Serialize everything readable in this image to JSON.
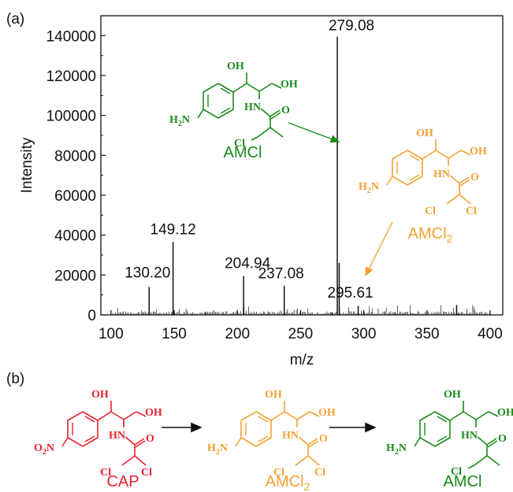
{
  "panel_labels": {
    "a": "(a)",
    "b": "(b)"
  },
  "colors": {
    "green": "#1a8a1a",
    "orange": "#f5a033",
    "red": "#e8202f",
    "axis": "#111111"
  },
  "chart_data": {
    "type": "bar",
    "title": "",
    "xlabel": "m/z",
    "ylabel": "Intensity",
    "xlim": [
      92,
      410
    ],
    "ylim": [
      0,
      150000
    ],
    "x_ticks": [
      "100",
      "150",
      "200",
      "250",
      "300",
      "350",
      "400"
    ],
    "y_ticks": [
      "0",
      "20000",
      "40000",
      "60000",
      "80000",
      "100000",
      "120000",
      "140000"
    ],
    "grid": false,
    "peaks": [
      {
        "x": 130.2,
        "y": 14000,
        "label": "130.20"
      },
      {
        "x": 149.12,
        "y": 36500,
        "label": "149.12"
      },
      {
        "x": 204.94,
        "y": 19500,
        "label": "204.94"
      },
      {
        "x": 237.08,
        "y": 14500,
        "label": "237.08"
      },
      {
        "x": 279.08,
        "y": 139500,
        "label": "279.08"
      },
      {
        "x": 280.6,
        "y": 26000,
        "label": ""
      },
      {
        "x": 295.61,
        "y": 4500,
        "label": "295.61"
      },
      {
        "x": 373.5,
        "y": 5000,
        "label": ""
      }
    ]
  },
  "annotations": {
    "amcl_name": "AMCl",
    "amcl2_name_main": "AMCl",
    "amcl2_name_sub": "2"
  },
  "scheme": {
    "cap": "CAP",
    "amcl2_main": "AMCl",
    "amcl2_sub": "2",
    "amcl": "AMCl"
  },
  "structure_labels": {
    "oh": "OH",
    "hn": "HN",
    "o": "O",
    "cl": "Cl",
    "h2n_main": "H",
    "h2n_sub": "2",
    "h2n_end": "N",
    "o2n_main": "O",
    "o2n_sub": "2",
    "o2n_end": "N"
  }
}
